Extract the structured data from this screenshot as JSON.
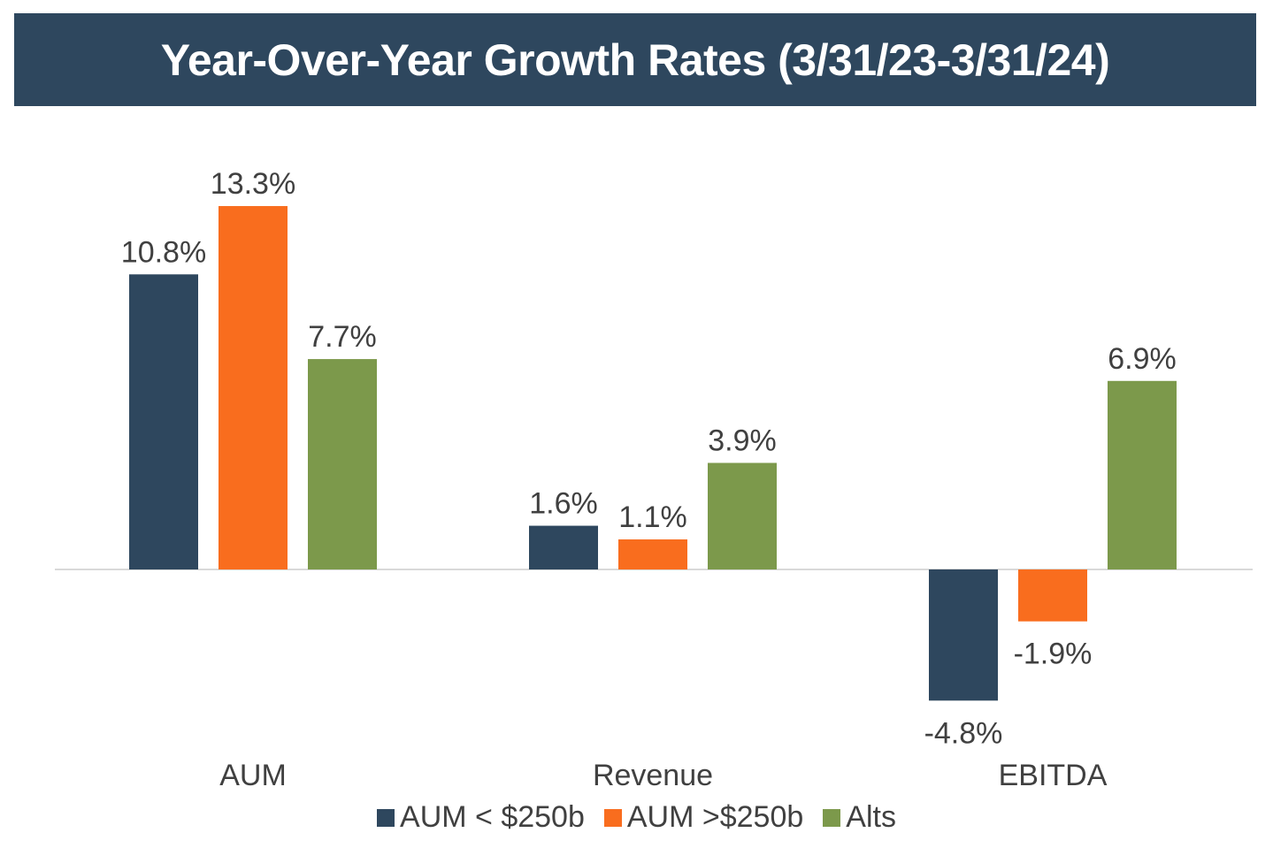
{
  "chart_data": {
    "type": "bar",
    "title": "Year-Over-Year Growth Rates (3/31/23-3/31/24)",
    "categories": [
      "AUM",
      "Revenue",
      "EBITDA"
    ],
    "series": [
      {
        "name": "AUM < $250b",
        "color": "#2e475e",
        "values": [
          10.8,
          1.6,
          -4.8
        ],
        "labels": [
          "10.8%",
          "1.6%",
          "-4.8%"
        ]
      },
      {
        "name": "AUM >$250b",
        "color": "#f96d1e",
        "values": [
          13.3,
          1.1,
          -1.9
        ],
        "labels": [
          "13.3%",
          "1.1%",
          "-1.9%"
        ]
      },
      {
        "name": "Alts",
        "color": "#7c994b",
        "values": [
          7.7,
          3.9,
          6.9
        ],
        "labels": [
          "7.7%",
          "3.9%",
          "6.9%"
        ]
      }
    ],
    "xlabel": "",
    "ylabel": "",
    "ylim": [
      -6,
      14
    ],
    "grid": false,
    "legend": "bottom",
    "value_format": "percent"
  }
}
